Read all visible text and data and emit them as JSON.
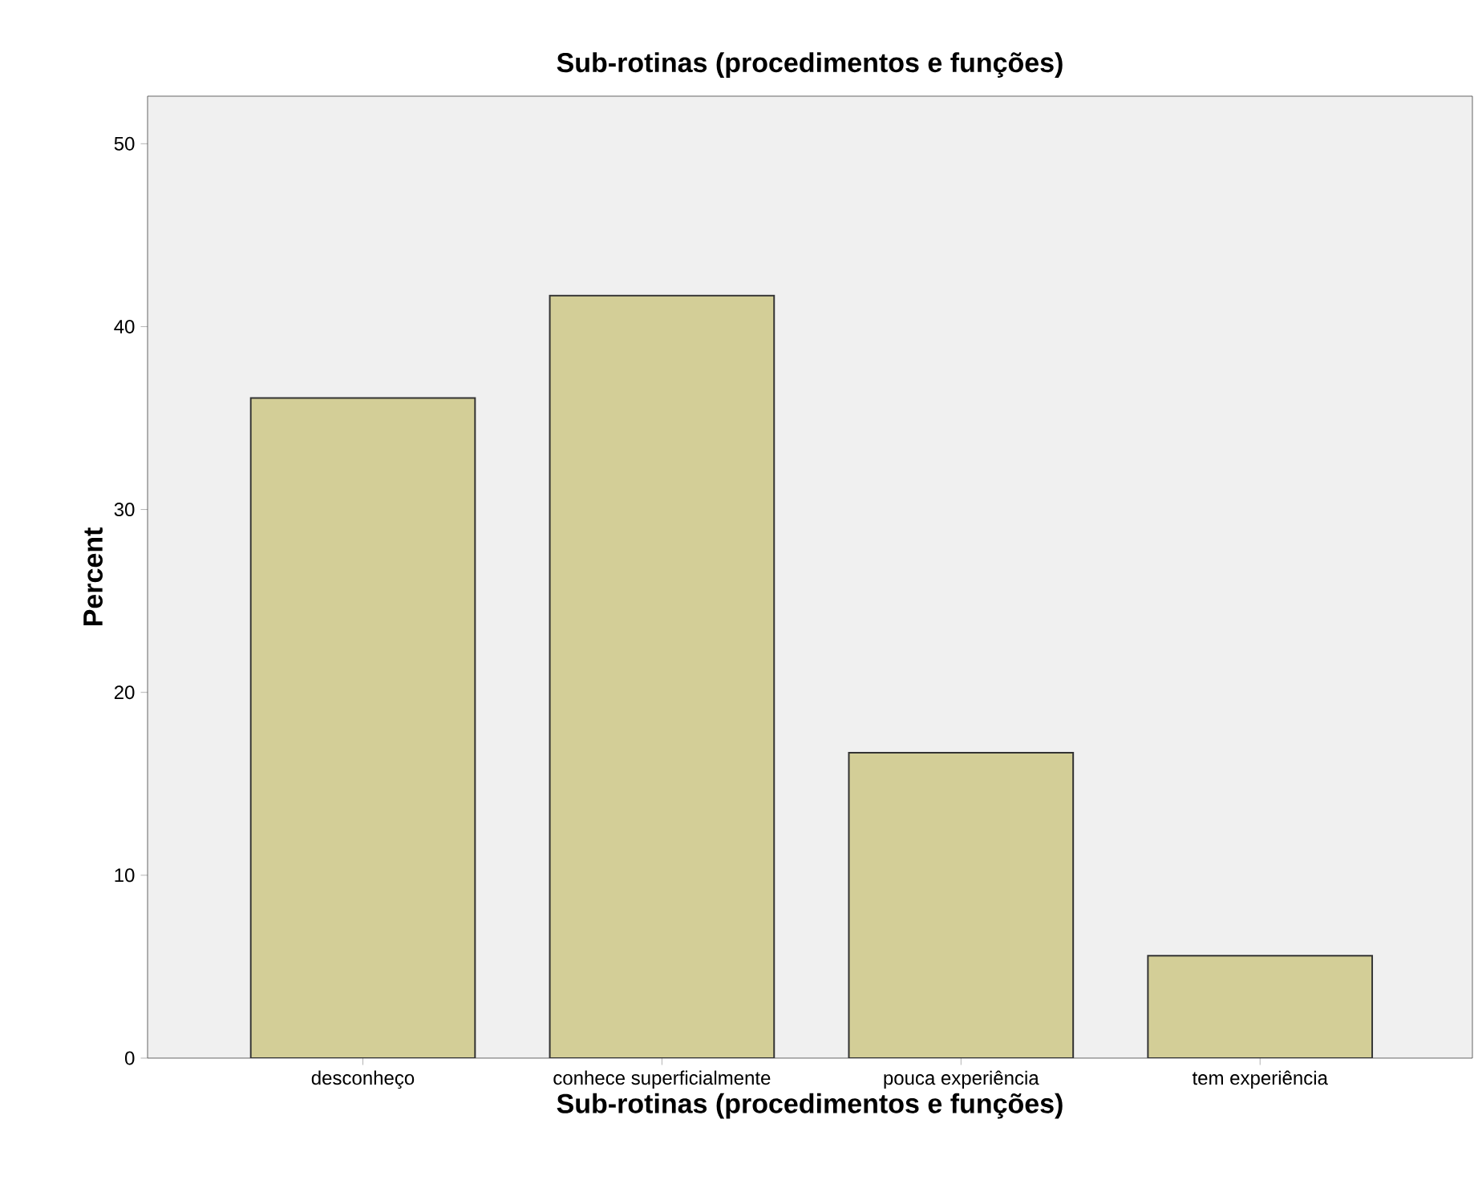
{
  "chart_data": {
    "type": "bar",
    "title": "Sub-rotinas (procedimentos e funções)",
    "xlabel": "Sub-rotinas (procedimentos e funções)",
    "ylabel": "Percent",
    "categories": [
      "desconheço",
      "conhece superficialmente",
      "pouca experiência",
      "tem experiência"
    ],
    "values": [
      36.1,
      41.7,
      16.7,
      5.6
    ],
    "color": "#d3ce97",
    "ylim": [
      0,
      52.6
    ],
    "yticks": [
      0,
      10,
      20,
      30,
      40,
      50
    ],
    "grid": false
  }
}
